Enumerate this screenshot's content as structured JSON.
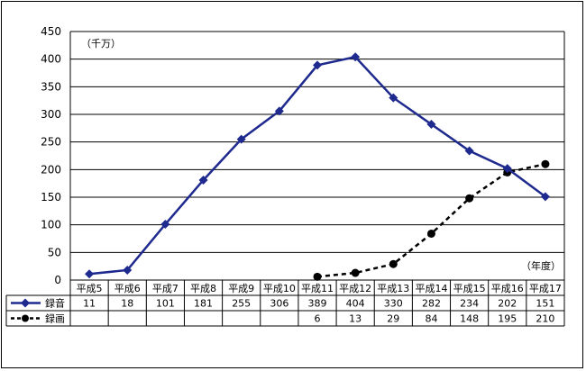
{
  "chart_data": {
    "type": "line",
    "title": "",
    "y_unit_label": "（千万）",
    "x_unit_label": "（年度）",
    "ylim": [
      0,
      450
    ],
    "y_ticks": [
      "0",
      "50",
      "100",
      "150",
      "200",
      "250",
      "300",
      "350",
      "400",
      "450"
    ],
    "grid": true,
    "categories": [
      "平成5",
      "平成6",
      "平成7",
      "平成8",
      "平成9",
      "平成10",
      "平成11",
      "平成12",
      "平成13",
      "平成14",
      "平成15",
      "平成16",
      "平成17"
    ],
    "series": [
      {
        "name": "録音",
        "color": "#1f2a8f",
        "line_style": "solid",
        "marker": "diamond",
        "values": [
          11,
          18,
          101,
          181,
          255,
          306,
          389,
          404,
          330,
          282,
          234,
          202,
          151
        ]
      },
      {
        "name": "録画",
        "color": "#000000",
        "line_style": "dashed",
        "marker": "circle",
        "values": [
          null,
          null,
          null,
          null,
          null,
          null,
          6,
          13,
          29,
          84,
          148,
          195,
          210
        ]
      }
    ],
    "legend_placement": "data-table-left"
  }
}
